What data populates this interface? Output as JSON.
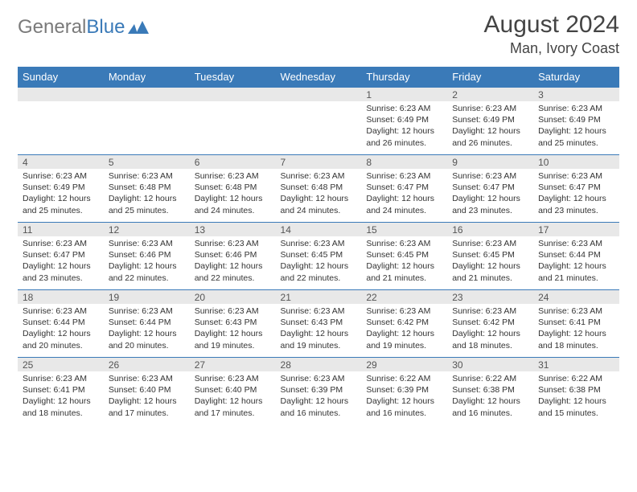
{
  "brand": {
    "part1": "General",
    "part2": "Blue"
  },
  "title": "August 2024",
  "location": "Man, Ivory Coast",
  "colors": {
    "header_bg": "#3a7ab8",
    "header_fg": "#ffffff",
    "daynum_bg": "#e8e8e8",
    "border": "#3a7ab8",
    "text": "#333333"
  },
  "weekdays": [
    "Sunday",
    "Monday",
    "Tuesday",
    "Wednesday",
    "Thursday",
    "Friday",
    "Saturday"
  ],
  "weeks": [
    {
      "nums": [
        "",
        "",
        "",
        "",
        "1",
        "2",
        "3"
      ],
      "cells": [
        null,
        null,
        null,
        null,
        {
          "sunrise": "6:23 AM",
          "sunset": "6:49 PM",
          "daylight": "12 hours and 26 minutes."
        },
        {
          "sunrise": "6:23 AM",
          "sunset": "6:49 PM",
          "daylight": "12 hours and 26 minutes."
        },
        {
          "sunrise": "6:23 AM",
          "sunset": "6:49 PM",
          "daylight": "12 hours and 25 minutes."
        }
      ]
    },
    {
      "nums": [
        "4",
        "5",
        "6",
        "7",
        "8",
        "9",
        "10"
      ],
      "cells": [
        {
          "sunrise": "6:23 AM",
          "sunset": "6:49 PM",
          "daylight": "12 hours and 25 minutes."
        },
        {
          "sunrise": "6:23 AM",
          "sunset": "6:48 PM",
          "daylight": "12 hours and 25 minutes."
        },
        {
          "sunrise": "6:23 AM",
          "sunset": "6:48 PM",
          "daylight": "12 hours and 24 minutes."
        },
        {
          "sunrise": "6:23 AM",
          "sunset": "6:48 PM",
          "daylight": "12 hours and 24 minutes."
        },
        {
          "sunrise": "6:23 AM",
          "sunset": "6:47 PM",
          "daylight": "12 hours and 24 minutes."
        },
        {
          "sunrise": "6:23 AM",
          "sunset": "6:47 PM",
          "daylight": "12 hours and 23 minutes."
        },
        {
          "sunrise": "6:23 AM",
          "sunset": "6:47 PM",
          "daylight": "12 hours and 23 minutes."
        }
      ]
    },
    {
      "nums": [
        "11",
        "12",
        "13",
        "14",
        "15",
        "16",
        "17"
      ],
      "cells": [
        {
          "sunrise": "6:23 AM",
          "sunset": "6:47 PM",
          "daylight": "12 hours and 23 minutes."
        },
        {
          "sunrise": "6:23 AM",
          "sunset": "6:46 PM",
          "daylight": "12 hours and 22 minutes."
        },
        {
          "sunrise": "6:23 AM",
          "sunset": "6:46 PM",
          "daylight": "12 hours and 22 minutes."
        },
        {
          "sunrise": "6:23 AM",
          "sunset": "6:45 PM",
          "daylight": "12 hours and 22 minutes."
        },
        {
          "sunrise": "6:23 AM",
          "sunset": "6:45 PM",
          "daylight": "12 hours and 21 minutes."
        },
        {
          "sunrise": "6:23 AM",
          "sunset": "6:45 PM",
          "daylight": "12 hours and 21 minutes."
        },
        {
          "sunrise": "6:23 AM",
          "sunset": "6:44 PM",
          "daylight": "12 hours and 21 minutes."
        }
      ]
    },
    {
      "nums": [
        "18",
        "19",
        "20",
        "21",
        "22",
        "23",
        "24"
      ],
      "cells": [
        {
          "sunrise": "6:23 AM",
          "sunset": "6:44 PM",
          "daylight": "12 hours and 20 minutes."
        },
        {
          "sunrise": "6:23 AM",
          "sunset": "6:44 PM",
          "daylight": "12 hours and 20 minutes."
        },
        {
          "sunrise": "6:23 AM",
          "sunset": "6:43 PM",
          "daylight": "12 hours and 19 minutes."
        },
        {
          "sunrise": "6:23 AM",
          "sunset": "6:43 PM",
          "daylight": "12 hours and 19 minutes."
        },
        {
          "sunrise": "6:23 AM",
          "sunset": "6:42 PM",
          "daylight": "12 hours and 19 minutes."
        },
        {
          "sunrise": "6:23 AM",
          "sunset": "6:42 PM",
          "daylight": "12 hours and 18 minutes."
        },
        {
          "sunrise": "6:23 AM",
          "sunset": "6:41 PM",
          "daylight": "12 hours and 18 minutes."
        }
      ]
    },
    {
      "nums": [
        "25",
        "26",
        "27",
        "28",
        "29",
        "30",
        "31"
      ],
      "cells": [
        {
          "sunrise": "6:23 AM",
          "sunset": "6:41 PM",
          "daylight": "12 hours and 18 minutes."
        },
        {
          "sunrise": "6:23 AM",
          "sunset": "6:40 PM",
          "daylight": "12 hours and 17 minutes."
        },
        {
          "sunrise": "6:23 AM",
          "sunset": "6:40 PM",
          "daylight": "12 hours and 17 minutes."
        },
        {
          "sunrise": "6:23 AM",
          "sunset": "6:39 PM",
          "daylight": "12 hours and 16 minutes."
        },
        {
          "sunrise": "6:22 AM",
          "sunset": "6:39 PM",
          "daylight": "12 hours and 16 minutes."
        },
        {
          "sunrise": "6:22 AM",
          "sunset": "6:38 PM",
          "daylight": "12 hours and 16 minutes."
        },
        {
          "sunrise": "6:22 AM",
          "sunset": "6:38 PM",
          "daylight": "12 hours and 15 minutes."
        }
      ]
    }
  ],
  "labels": {
    "sunrise": "Sunrise:",
    "sunset": "Sunset:",
    "daylight": "Daylight:"
  }
}
